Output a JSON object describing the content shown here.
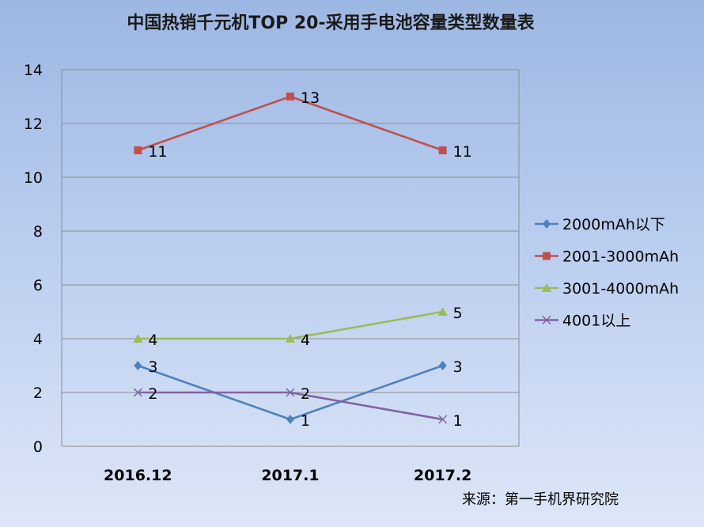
{
  "chart_data": {
    "type": "line",
    "title": "中国热销千元机TOP 20-采用手电池容量类型数量表",
    "categories": [
      "2016.12",
      "2017.1",
      "2017.2"
    ],
    "ylim": [
      0,
      14
    ],
    "yticks": [
      "0",
      "2",
      "4",
      "6",
      "8",
      "10",
      "12",
      "14"
    ],
    "grid": true,
    "legend_position": "right",
    "series": [
      {
        "name": "2000mAh以下",
        "values": [
          3,
          1,
          3
        ],
        "color": "#4f81bd",
        "marker": "diamond"
      },
      {
        "name": "2001-3000mAh",
        "values": [
          11,
          13,
          11
        ],
        "color": "#c0504d",
        "marker": "square"
      },
      {
        "name": "3001-4000mAh",
        "values": [
          4,
          4,
          5
        ],
        "color": "#9bbb59",
        "marker": "triangle"
      },
      {
        "name": "4001以上",
        "values": [
          2,
          2,
          1
        ],
        "color": "#8064a2",
        "marker": "x"
      }
    ],
    "source": "来源：第一手机界研究院"
  }
}
